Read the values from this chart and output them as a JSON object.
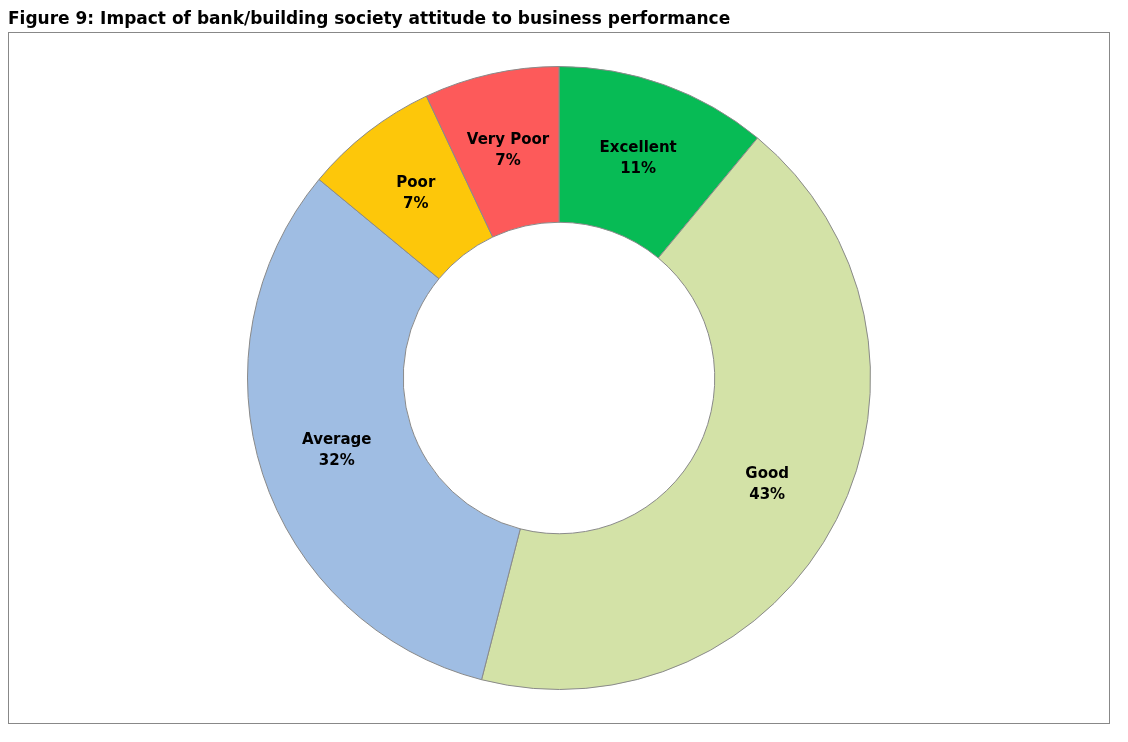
{
  "chart_data": {
    "type": "donut",
    "title": "Figure 9: Impact of bank/building society attitude to business performance",
    "categories": [
      "Excellent",
      "Good",
      "Average",
      "Poor",
      "Very Poor"
    ],
    "values": [
      11,
      43,
      32,
      7,
      7
    ],
    "colors": [
      "#07bb55",
      "#d3e2a7",
      "#9fbde3",
      "#fdc70a",
      "#fd5a5a"
    ],
    "value_labels": [
      "11%",
      "43%",
      "32%",
      "7%",
      "7%"
    ],
    "legend": false
  }
}
